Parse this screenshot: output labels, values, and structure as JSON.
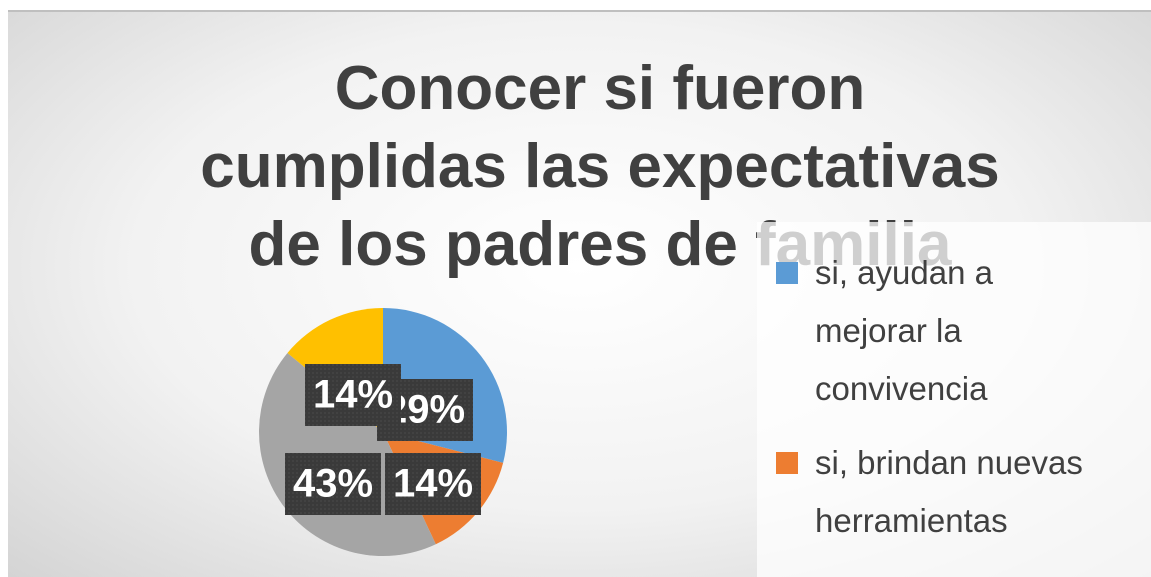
{
  "chart_data": {
    "type": "pie",
    "title": "Conocer si fueron\ncumplidas las expectativas\nde los padres de familia",
    "categories": [
      "si, ayudan a mejorar la convivencia",
      "si, brindan nuevas herramientas",
      null,
      null
    ],
    "values": [
      29,
      14,
      43,
      14
    ],
    "value_labels": [
      "29%",
      "14%",
      "43%",
      "14%"
    ],
    "colors": [
      "#5b9bd5",
      "#ed7d31",
      "#a5a5a5",
      "#ffc000"
    ]
  }
}
